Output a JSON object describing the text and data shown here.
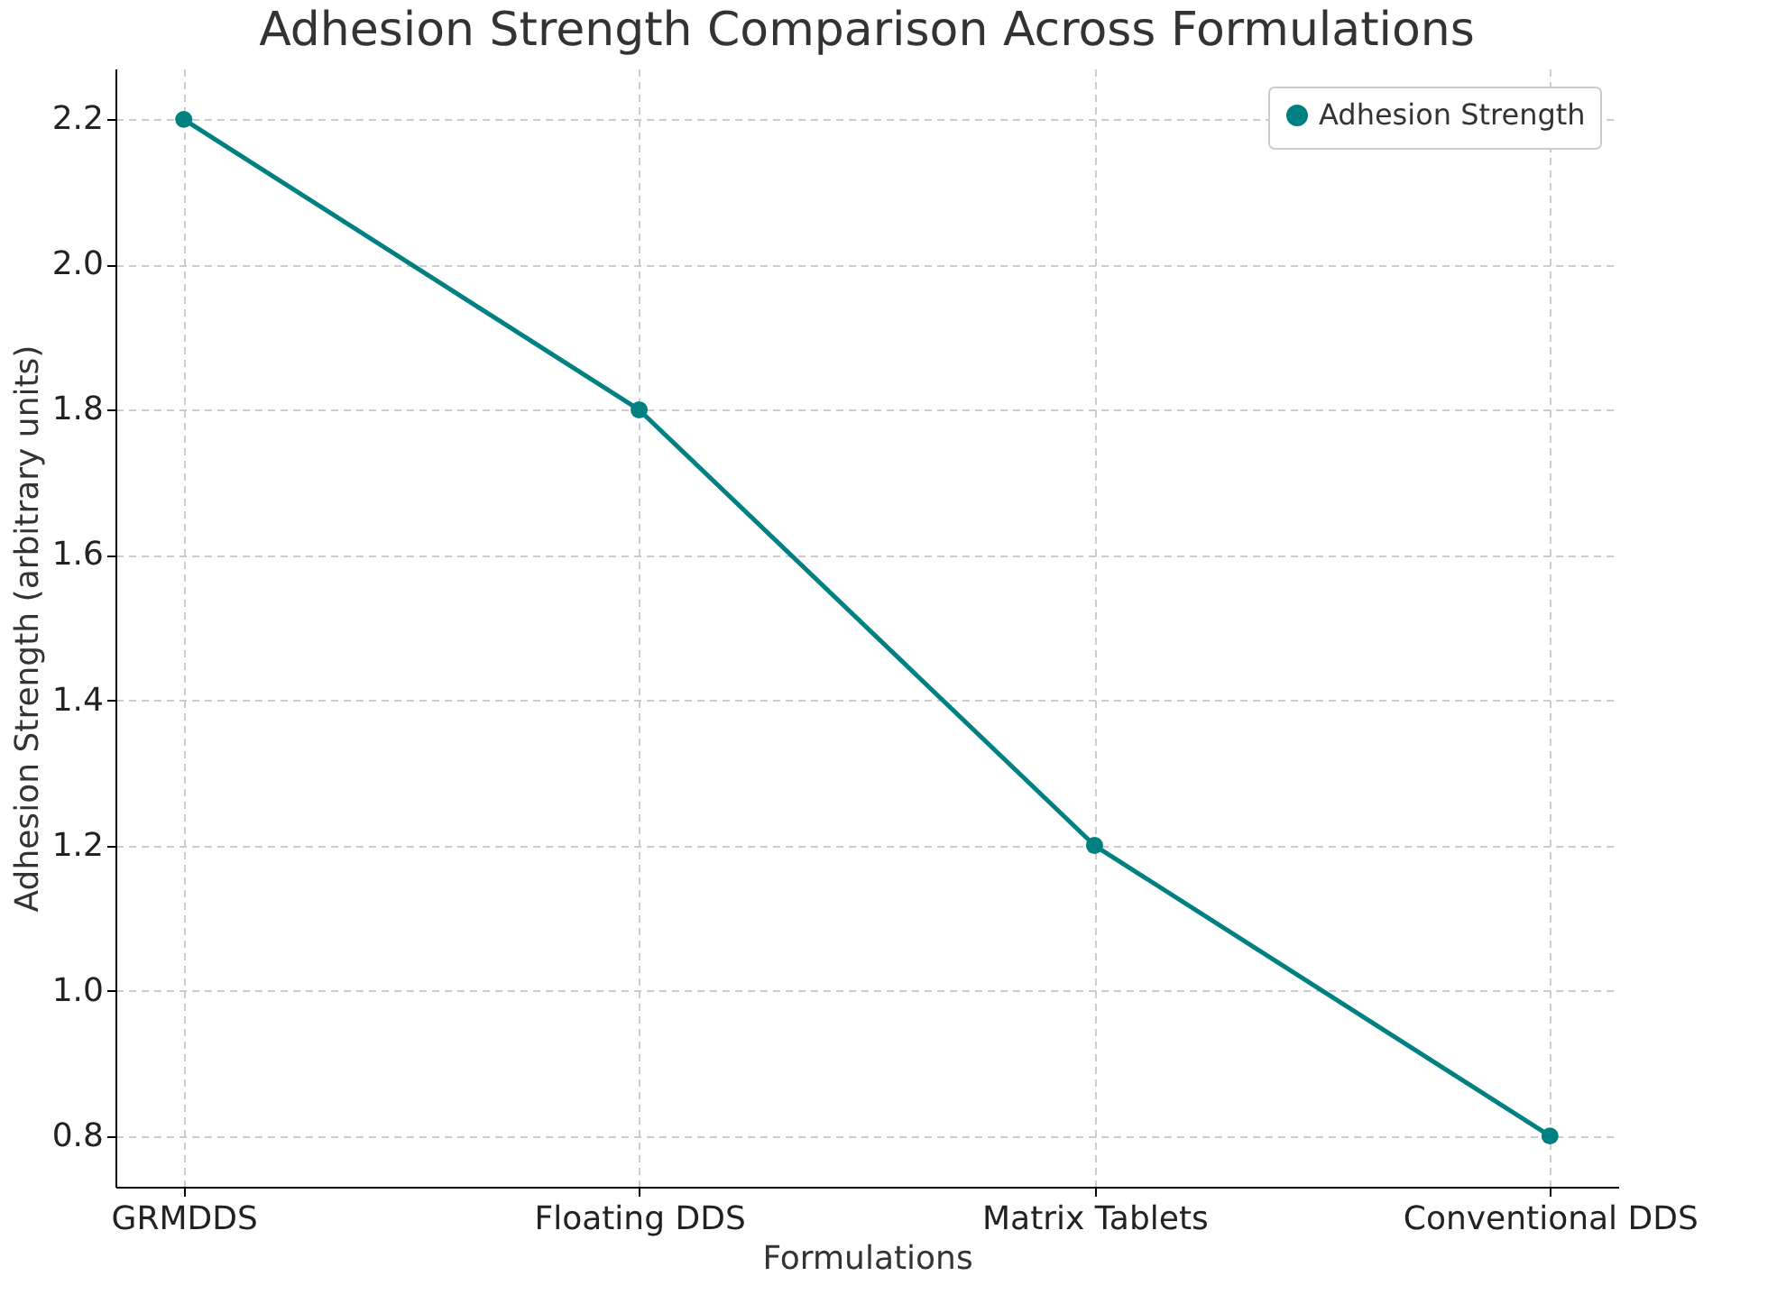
{
  "chart_data": {
    "type": "line",
    "title": "Adhesion Strength Comparison Across Formulations",
    "xlabel": "Formulations",
    "ylabel": "Adhesion Strength (arbitrary units)",
    "categories": [
      "GRMDDS",
      "Floating DDS",
      "Matrix Tablets",
      "Conventional DDS"
    ],
    "series": [
      {
        "name": "Adhesion Strength",
        "color": "#008080",
        "values": [
          2.2,
          1.8,
          1.2,
          0.8
        ]
      }
    ],
    "ylim": [
      0.73,
      2.27
    ],
    "yticks": [
      0.8,
      {
        "value": 1,
        "label": "1.0"
      },
      1.2,
      1.4,
      1.6,
      1.8,
      {
        "value": 2,
        "label": "2.0"
      },
      2.2
    ],
    "grid": true,
    "legend": "top right",
    "marker": "circle",
    "line_style": "solid"
  }
}
